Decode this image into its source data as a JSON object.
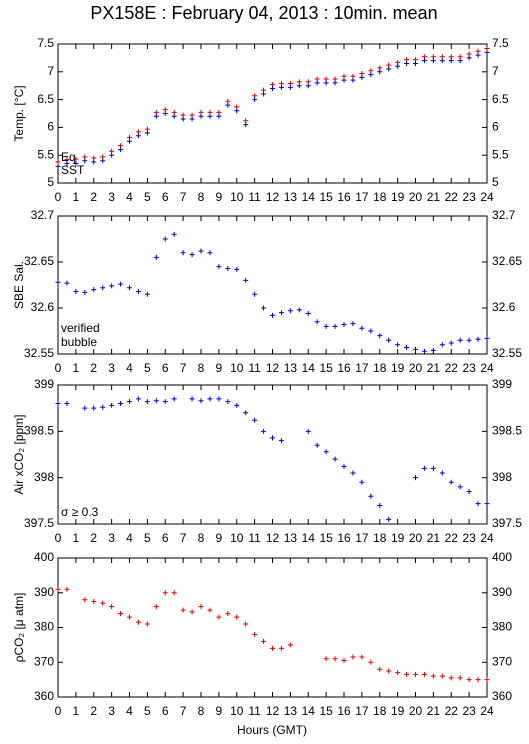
{
  "title": "PX158E : February 04, 2013 : 10min. mean",
  "xlabel": "Hours (GMT)",
  "chart_data": [
    {
      "type": "scatter",
      "ylabel": "Temp. [°C]",
      "legend": "lower left",
      "x": [
        0,
        0.5,
        1,
        1.5,
        2,
        2.5,
        3,
        3.5,
        4,
        4.5,
        5,
        5.5,
        6,
        6.5,
        7,
        7.5,
        8,
        8.5,
        9,
        9.5,
        10,
        10.5,
        11,
        11.5,
        12,
        12.5,
        13,
        13.5,
        14,
        14.5,
        15,
        15.5,
        16,
        16.5,
        17,
        17.5,
        18,
        18.5,
        19,
        19.5,
        20,
        20.5,
        21,
        21.5,
        22,
        22.5,
        23,
        23.5,
        24
      ],
      "series": [
        {
          "name": "Eq",
          "color": "#dd0000",
          "values": [
            5.38,
            5.42,
            5.43,
            5.47,
            5.45,
            5.47,
            5.57,
            5.67,
            5.82,
            5.92,
            5.97,
            6.27,
            6.32,
            6.27,
            6.22,
            6.22,
            6.27,
            6.27,
            6.27,
            6.47,
            6.37,
            6.12,
            6.57,
            6.67,
            6.77,
            6.79,
            6.79,
            6.82,
            6.82,
            6.87,
            6.87,
            6.87,
            6.92,
            6.92,
            6.97,
            7.02,
            7.07,
            7.12,
            7.17,
            7.22,
            7.22,
            7.27,
            7.27,
            7.27,
            7.27,
            7.27,
            7.32,
            7.37,
            7.42
          ]
        },
        {
          "name": "SST",
          "color": "#0000cc",
          "values": [
            5.3,
            5.35,
            5.35,
            5.4,
            5.38,
            5.4,
            5.5,
            5.6,
            5.75,
            5.85,
            5.9,
            6.2,
            6.25,
            6.2,
            6.15,
            6.15,
            6.2,
            6.2,
            6.2,
            6.4,
            6.3,
            6.05,
            6.5,
            6.6,
            6.7,
            6.72,
            6.72,
            6.75,
            6.75,
            6.8,
            6.8,
            6.8,
            6.85,
            6.85,
            6.9,
            6.95,
            7.0,
            7.05,
            7.1,
            7.15,
            7.15,
            7.2,
            7.2,
            7.2,
            7.2,
            7.2,
            7.25,
            7.3,
            7.35
          ]
        }
      ],
      "xlim": [
        0,
        24
      ],
      "xticks": [
        0,
        1,
        2,
        3,
        4,
        5,
        6,
        7,
        8,
        9,
        10,
        11,
        12,
        13,
        14,
        15,
        16,
        17,
        18,
        19,
        20,
        21,
        22,
        23,
        24
      ],
      "ylim": [
        5,
        7.5
      ],
      "yticks": [
        5,
        5.5,
        6,
        6.5,
        7,
        7.5
      ]
    },
    {
      "type": "scatter",
      "ylabel": "SBE Sal.",
      "annotations": [
        {
          "text": "verified",
          "color": "#0000cc"
        },
        {
          "text": "bubble",
          "color": "#cc00cc"
        }
      ],
      "x": [
        0,
        0.5,
        1,
        1.5,
        2,
        2.5,
        3,
        3.5,
        4,
        4.5,
        5,
        5.5,
        6,
        6.5,
        7,
        7.5,
        8,
        8.5,
        9,
        9.5,
        10,
        10.5,
        11,
        11.5,
        12,
        12.5,
        13,
        13.5,
        14,
        14.5,
        15,
        15.5,
        16,
        16.5,
        17,
        17.5,
        18,
        18.5,
        19,
        19.5,
        20,
        20.5,
        21,
        21.5,
        22,
        22.5,
        23,
        23.5,
        24
      ],
      "series": [
        {
          "name": "verified",
          "color": "#0000cc",
          "values": [
            32.628,
            32.627,
            32.618,
            32.617,
            32.62,
            32.622,
            32.624,
            32.626,
            32.622,
            32.618,
            32.615,
            32.655,
            32.675,
            32.68,
            32.66,
            32.658,
            32.662,
            32.66,
            32.645,
            32.643,
            32.642,
            32.63,
            32.615,
            32.6,
            32.592,
            32.595,
            32.597,
            32.598,
            32.594,
            32.585,
            32.58,
            32.58,
            32.582,
            32.583,
            32.578,
            32.575,
            32.57,
            32.565,
            32.56,
            32.557,
            32.555,
            32.553,
            32.554,
            32.56,
            32.562,
            32.565,
            32.565,
            32.566,
            32.567
          ]
        }
      ],
      "xlim": [
        0,
        24
      ],
      "xticks": [
        0,
        1,
        2,
        3,
        4,
        5,
        6,
        7,
        8,
        9,
        10,
        11,
        12,
        13,
        14,
        15,
        16,
        17,
        18,
        19,
        20,
        21,
        22,
        23,
        24
      ],
      "ylim": [
        32.55,
        32.7
      ],
      "yticks": [
        32.55,
        32.6,
        32.65,
        32.7
      ]
    },
    {
      "type": "scatter",
      "ylabel": "Air xCO₂ [ppm]",
      "annotations": [
        {
          "text": "σ ≥ 0.3",
          "color": "#cc00cc"
        }
      ],
      "x": [
        0,
        0.5,
        1,
        1.5,
        2,
        2.5,
        3,
        3.5,
        4,
        4.5,
        5,
        5.5,
        6,
        6.5,
        7,
        7.5,
        8,
        8.5,
        9,
        9.5,
        10,
        10.5,
        11,
        11.5,
        12,
        12.5,
        13,
        13.5,
        14,
        14.5,
        15,
        15.5,
        16,
        16.5,
        17,
        17.5,
        18,
        18.5,
        19,
        19.5,
        20,
        20.5,
        21,
        21.5,
        22,
        22.5,
        23,
        23.5,
        24
      ],
      "series": [
        {
          "name": "xCO₂",
          "color": "#0000cc",
          "values": [
            398.8,
            398.8,
            null,
            398.75,
            398.75,
            398.76,
            398.78,
            398.8,
            398.82,
            398.85,
            398.82,
            398.83,
            398.82,
            398.85,
            null,
            398.85,
            398.83,
            398.85,
            398.85,
            398.82,
            398.78,
            398.7,
            398.62,
            398.5,
            398.43,
            398.4,
            null,
            null,
            398.5,
            398.35,
            398.28,
            398.2,
            398.12,
            398.05,
            397.95,
            397.8,
            397.7,
            397.55,
            null,
            null,
            398.0,
            398.1,
            398.1,
            398.05,
            397.95,
            397.9,
            397.85,
            397.72,
            397.72
          ]
        }
      ],
      "xlim": [
        0,
        24
      ],
      "xticks": [
        0,
        1,
        2,
        3,
        4,
        5,
        6,
        7,
        8,
        9,
        10,
        11,
        12,
        13,
        14,
        15,
        16,
        17,
        18,
        19,
        20,
        21,
        22,
        23,
        24
      ],
      "ylim": [
        397.5,
        399
      ],
      "yticks": [
        397.5,
        398,
        398.5,
        399
      ]
    },
    {
      "type": "scatter",
      "ylabel": "ρCO₂ [μ atm]",
      "x": [
        0,
        0.5,
        1,
        1.5,
        2,
        2.5,
        3,
        3.5,
        4,
        4.5,
        5,
        5.5,
        6,
        6.5,
        7,
        7.5,
        8,
        8.5,
        9,
        9.5,
        10,
        10.5,
        11,
        11.5,
        12,
        12.5,
        13,
        13.5,
        14,
        14.5,
        15,
        15.5,
        16,
        16.5,
        17,
        17.5,
        18,
        18.5,
        19,
        19.5,
        20,
        20.5,
        21,
        21.5,
        22,
        22.5,
        23,
        23.5,
        24
      ],
      "series": [
        {
          "name": "ρCO₂",
          "color": "#dd0000",
          "values": [
            391,
            391,
            null,
            388,
            387.5,
            387,
            386,
            384,
            383,
            381.5,
            381,
            386,
            390,
            390,
            385,
            384.5,
            386,
            385,
            383,
            384,
            383,
            381,
            378,
            376,
            374,
            374,
            375,
            null,
            null,
            null,
            371,
            371,
            370.5,
            371.5,
            371.5,
            370,
            368,
            367.5,
            367,
            366.5,
            366.5,
            366.5,
            366,
            366,
            365.5,
            365.5,
            365,
            365,
            365
          ]
        }
      ],
      "xlim": [
        0,
        24
      ],
      "xticks": [
        0,
        1,
        2,
        3,
        4,
        5,
        6,
        7,
        8,
        9,
        10,
        11,
        12,
        13,
        14,
        15,
        16,
        17,
        18,
        19,
        20,
        21,
        22,
        23,
        24
      ],
      "ylim": [
        360,
        400
      ],
      "yticks": [
        360,
        370,
        380,
        390,
        400
      ]
    }
  ]
}
